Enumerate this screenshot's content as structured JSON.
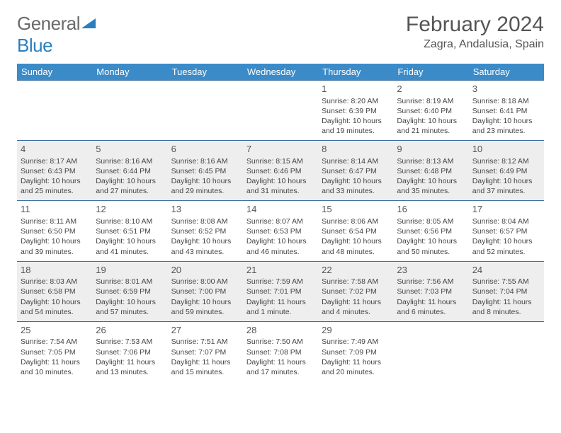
{
  "logo": {
    "general": "General",
    "blue": "Blue"
  },
  "title": "February 2024",
  "location": "Zagra, Andalusia, Spain",
  "weekdays": [
    "Sunday",
    "Monday",
    "Tuesday",
    "Wednesday",
    "Thursday",
    "Friday",
    "Saturday"
  ],
  "colors": {
    "header_bg": "#3b8bc9",
    "header_text": "#ffffff",
    "row_border": "#3b6fa0",
    "alt_row_bg": "#eeeeee",
    "text": "#444444",
    "title_text": "#555555",
    "logo_general": "#6a6a6a",
    "logo_blue": "#2a7fbf"
  },
  "layout": {
    "first_weekday_index": 4,
    "days_in_month": 29
  },
  "days": {
    "1": {
      "sunrise": "8:20 AM",
      "sunset": "6:39 PM",
      "daylight": "10 hours and 19 minutes."
    },
    "2": {
      "sunrise": "8:19 AM",
      "sunset": "6:40 PM",
      "daylight": "10 hours and 21 minutes."
    },
    "3": {
      "sunrise": "8:18 AM",
      "sunset": "6:41 PM",
      "daylight": "10 hours and 23 minutes."
    },
    "4": {
      "sunrise": "8:17 AM",
      "sunset": "6:43 PM",
      "daylight": "10 hours and 25 minutes."
    },
    "5": {
      "sunrise": "8:16 AM",
      "sunset": "6:44 PM",
      "daylight": "10 hours and 27 minutes."
    },
    "6": {
      "sunrise": "8:16 AM",
      "sunset": "6:45 PM",
      "daylight": "10 hours and 29 minutes."
    },
    "7": {
      "sunrise": "8:15 AM",
      "sunset": "6:46 PM",
      "daylight": "10 hours and 31 minutes."
    },
    "8": {
      "sunrise": "8:14 AM",
      "sunset": "6:47 PM",
      "daylight": "10 hours and 33 minutes."
    },
    "9": {
      "sunrise": "8:13 AM",
      "sunset": "6:48 PM",
      "daylight": "10 hours and 35 minutes."
    },
    "10": {
      "sunrise": "8:12 AM",
      "sunset": "6:49 PM",
      "daylight": "10 hours and 37 minutes."
    },
    "11": {
      "sunrise": "8:11 AM",
      "sunset": "6:50 PM",
      "daylight": "10 hours and 39 minutes."
    },
    "12": {
      "sunrise": "8:10 AM",
      "sunset": "6:51 PM",
      "daylight": "10 hours and 41 minutes."
    },
    "13": {
      "sunrise": "8:08 AM",
      "sunset": "6:52 PM",
      "daylight": "10 hours and 43 minutes."
    },
    "14": {
      "sunrise": "8:07 AM",
      "sunset": "6:53 PM",
      "daylight": "10 hours and 46 minutes."
    },
    "15": {
      "sunrise": "8:06 AM",
      "sunset": "6:54 PM",
      "daylight": "10 hours and 48 minutes."
    },
    "16": {
      "sunrise": "8:05 AM",
      "sunset": "6:56 PM",
      "daylight": "10 hours and 50 minutes."
    },
    "17": {
      "sunrise": "8:04 AM",
      "sunset": "6:57 PM",
      "daylight": "10 hours and 52 minutes."
    },
    "18": {
      "sunrise": "8:03 AM",
      "sunset": "6:58 PM",
      "daylight": "10 hours and 54 minutes."
    },
    "19": {
      "sunrise": "8:01 AM",
      "sunset": "6:59 PM",
      "daylight": "10 hours and 57 minutes."
    },
    "20": {
      "sunrise": "8:00 AM",
      "sunset": "7:00 PM",
      "daylight": "10 hours and 59 minutes."
    },
    "21": {
      "sunrise": "7:59 AM",
      "sunset": "7:01 PM",
      "daylight": "11 hours and 1 minute."
    },
    "22": {
      "sunrise": "7:58 AM",
      "sunset": "7:02 PM",
      "daylight": "11 hours and 4 minutes."
    },
    "23": {
      "sunrise": "7:56 AM",
      "sunset": "7:03 PM",
      "daylight": "11 hours and 6 minutes."
    },
    "24": {
      "sunrise": "7:55 AM",
      "sunset": "7:04 PM",
      "daylight": "11 hours and 8 minutes."
    },
    "25": {
      "sunrise": "7:54 AM",
      "sunset": "7:05 PM",
      "daylight": "11 hours and 10 minutes."
    },
    "26": {
      "sunrise": "7:53 AM",
      "sunset": "7:06 PM",
      "daylight": "11 hours and 13 minutes."
    },
    "27": {
      "sunrise": "7:51 AM",
      "sunset": "7:07 PM",
      "daylight": "11 hours and 15 minutes."
    },
    "28": {
      "sunrise": "7:50 AM",
      "sunset": "7:08 PM",
      "daylight": "11 hours and 17 minutes."
    },
    "29": {
      "sunrise": "7:49 AM",
      "sunset": "7:09 PM",
      "daylight": "11 hours and 20 minutes."
    }
  },
  "labels": {
    "sunrise_prefix": "Sunrise: ",
    "sunset_prefix": "Sunset: ",
    "daylight_prefix": "Daylight: "
  }
}
